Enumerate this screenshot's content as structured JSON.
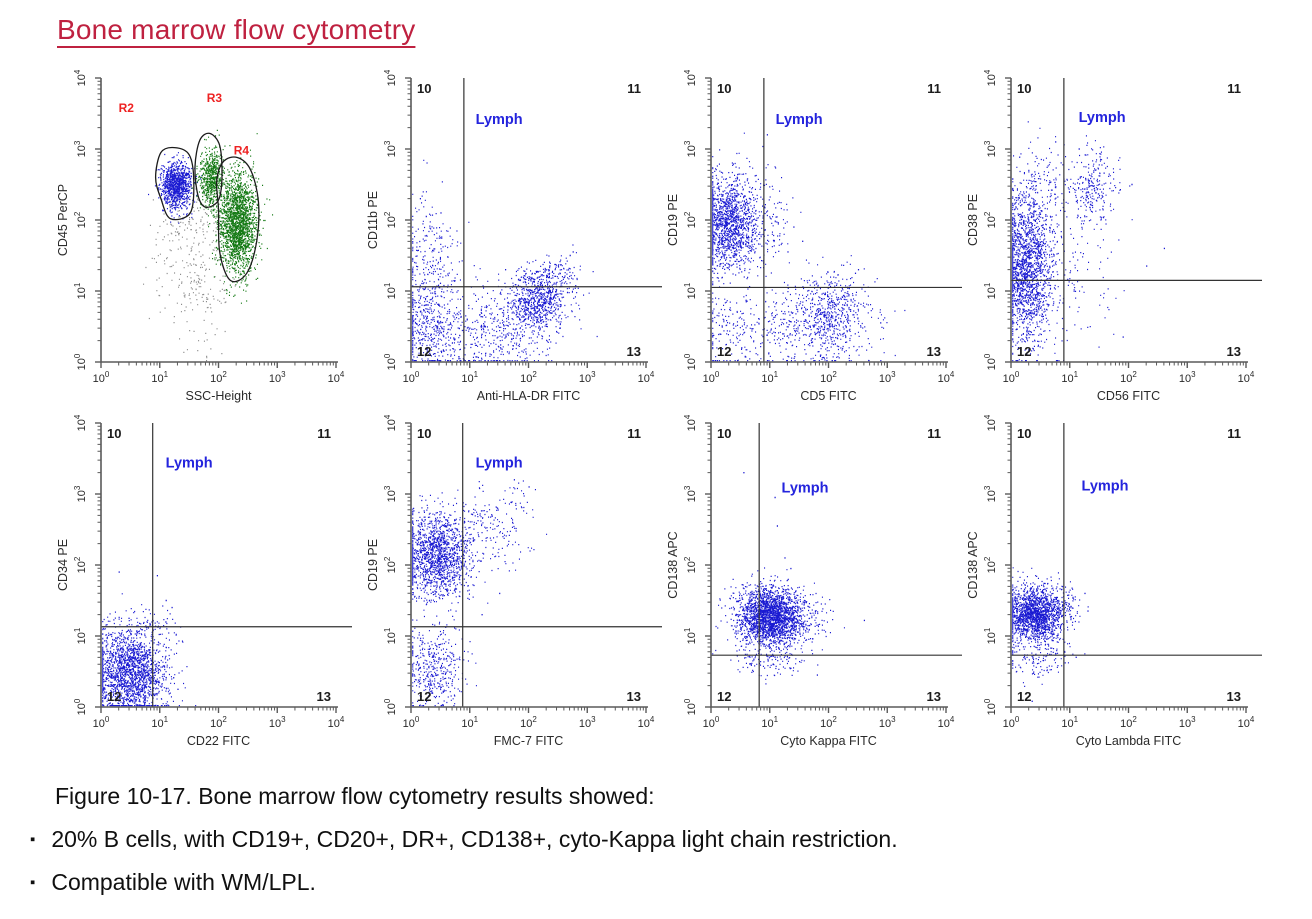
{
  "page": {
    "title": "Bone marrow flow cytometry",
    "caption": "Figure 10-17. Bone marrow flow cytometry results showed:",
    "bullet_glyph": "▪",
    "bullets": [
      "20% B cells, with CD19+, CD20+, DR+, CD138+, cyto-Kappa light chain restriction.",
      "Compatible with WM/LPL."
    ]
  },
  "colors": {
    "title": "#bf2140",
    "body_text": "#101010",
    "dot_blue": "#1a1ad2",
    "dot_green": "#157a15",
    "dot_gray": "#8c8c8c",
    "gate_outline": "#1b1b1b",
    "quadrant_label": "#1c1c1c",
    "lymph_label": "#2424dd",
    "region_label": "#ee2222",
    "axis": "#5a5a5a",
    "tick_text": "#2a2a2a",
    "quadrant_line": "#333333"
  },
  "axes_common": {
    "scale": "log10",
    "decades": [
      0,
      1,
      2,
      3,
      4
    ],
    "tick_base": "10",
    "xlim": [
      0,
      4
    ],
    "ylim": [
      0,
      4
    ],
    "grid": false
  },
  "chart_data": [
    {
      "type": "scatter",
      "name": "cd45-vs-ssc-gating",
      "xlabel": "SSC-Height",
      "ylabel": "CD45 PerCP",
      "regions": [
        {
          "label": "R2",
          "x": 0.3,
          "y": 3.52
        },
        {
          "label": "R3",
          "x": 1.8,
          "y": 3.66
        },
        {
          "label": "R4",
          "x": 2.26,
          "y": 2.92
        }
      ],
      "gates": [
        [
          [
            1.02,
            2.3
          ],
          [
            0.93,
            2.6
          ],
          [
            1.02,
            2.95
          ],
          [
            1.25,
            3.02
          ],
          [
            1.5,
            2.92
          ],
          [
            1.58,
            2.55
          ],
          [
            1.52,
            2.1
          ],
          [
            1.18,
            2.02
          ]
        ],
        [
          [
            1.65,
            2.35
          ],
          [
            1.6,
            2.75
          ],
          [
            1.68,
            3.12
          ],
          [
            1.85,
            3.22
          ],
          [
            2.02,
            3.05
          ],
          [
            2.06,
            2.62
          ],
          [
            2.0,
            2.28
          ],
          [
            1.78,
            2.18
          ]
        ],
        [
          [
            2.0,
            2.15
          ],
          [
            1.97,
            2.55
          ],
          [
            2.08,
            2.82
          ],
          [
            2.32,
            2.88
          ],
          [
            2.55,
            2.7
          ],
          [
            2.68,
            2.25
          ],
          [
            2.65,
            1.7
          ],
          [
            2.48,
            1.25
          ],
          [
            2.2,
            1.15
          ],
          [
            2.02,
            1.55
          ]
        ]
      ],
      "clusters": [
        {
          "color": "gray",
          "cx": 1.45,
          "cy": 1.55,
          "sx": 0.3,
          "sy": 0.42,
          "n": 160,
          "seed": 101
        },
        {
          "color": "gray",
          "cx": 1.75,
          "cy": 0.85,
          "sx": 0.28,
          "sy": 0.35,
          "n": 90,
          "seed": 102
        },
        {
          "color": "gray",
          "cx": 1.6,
          "cy": 2.1,
          "sx": 0.35,
          "sy": 0.25,
          "n": 80,
          "seed": 103
        },
        {
          "color": "blue",
          "cx": 1.27,
          "cy": 2.5,
          "sx": 0.13,
          "sy": 0.16,
          "n": 1000,
          "seed": 104
        },
        {
          "color": "green",
          "cx": 1.87,
          "cy": 2.58,
          "sx": 0.1,
          "sy": 0.22,
          "n": 600,
          "seed": 105
        },
        {
          "color": "green",
          "cx": 2.33,
          "cy": 1.95,
          "sx": 0.16,
          "sy": 0.34,
          "n": 2000,
          "seed": 106
        }
      ],
      "outliers": []
    },
    {
      "type": "scatter",
      "name": "cd11b-vs-hladr",
      "xlabel": "Anti-HLA-DR FITC",
      "ylabel": "CD11b PE",
      "quadrants": {
        "vx": 0.9,
        "hy": 1.06,
        "labels": [
          "10",
          "11",
          "12",
          "13"
        ]
      },
      "lymph": {
        "text": "Lymph",
        "x": 1.1,
        "y": 3.35
      },
      "clusters": [
        {
          "color": "blue",
          "cx": 0.3,
          "cy": 0.55,
          "sx": 0.28,
          "sy": 0.35,
          "n": 420,
          "seed": 201
        },
        {
          "color": "blue",
          "cx": 0.3,
          "cy": 1.45,
          "sx": 0.25,
          "sy": 0.45,
          "n": 230,
          "seed": 202
        },
        {
          "color": "blue",
          "cx": 1.55,
          "cy": 0.55,
          "sx": 0.5,
          "sy": 0.3,
          "n": 350,
          "seed": 203
        },
        {
          "color": "blue",
          "cx": 2.15,
          "cy": 0.85,
          "sx": 0.25,
          "sy": 0.22,
          "n": 650,
          "seed": 204
        },
        {
          "color": "blue",
          "cx": 2.45,
          "cy": 1.2,
          "sx": 0.22,
          "sy": 0.15,
          "n": 130,
          "seed": 205
        },
        {
          "color": "blue",
          "cx": 1.1,
          "cy": 0.25,
          "sx": 0.55,
          "sy": 0.2,
          "n": 150,
          "seed": 206
        }
      ],
      "outliers": [
        [
          0.25,
          2.05
        ],
        [
          0.5,
          2.1
        ],
        [
          0.15,
          2.3
        ],
        [
          2.7,
          1.5
        ],
        [
          2.75,
          1.55
        ],
        [
          1.6,
          1.3
        ]
      ]
    },
    {
      "type": "scatter",
      "name": "cd19-vs-cd5",
      "xlabel": "CD5 FITC",
      "ylabel": "CD19 PE",
      "quadrants": {
        "vx": 0.9,
        "hy": 1.05,
        "labels": [
          "10",
          "11",
          "12",
          "13"
        ]
      },
      "lymph": {
        "text": "Lymph",
        "x": 1.1,
        "y": 3.35
      },
      "clusters": [
        {
          "color": "blue",
          "cx": 0.3,
          "cy": 1.95,
          "sx": 0.28,
          "sy": 0.33,
          "n": 1500,
          "seed": 301
        },
        {
          "color": "blue",
          "cx": 1.05,
          "cy": 2.05,
          "sx": 0.18,
          "sy": 0.35,
          "n": 70,
          "seed": 302
        },
        {
          "color": "blue",
          "cx": 1.75,
          "cy": 0.55,
          "sx": 0.5,
          "sy": 0.28,
          "n": 500,
          "seed": 303
        },
        {
          "color": "blue",
          "cx": 2.1,
          "cy": 0.7,
          "sx": 0.22,
          "sy": 0.3,
          "n": 320,
          "seed": 304
        },
        {
          "color": "blue",
          "cx": 0.35,
          "cy": 0.45,
          "sx": 0.3,
          "sy": 0.3,
          "n": 170,
          "seed": 305
        }
      ],
      "outliers": [
        [
          0.95,
          3.2
        ],
        [
          1.4,
          1.9
        ],
        [
          1.55,
          1.7
        ],
        [
          2.45,
          1.25
        ],
        [
          2.5,
          1.3
        ],
        [
          1.3,
          1.55
        ]
      ]
    },
    {
      "type": "scatter",
      "name": "cd38-vs-cd56",
      "xlabel": "CD56 FITC",
      "ylabel": "CD38 PE",
      "quadrants": {
        "vx": 0.9,
        "hy": 1.15,
        "labels": [
          "10",
          "11",
          "12",
          "13"
        ]
      },
      "lymph": {
        "text": "Lymph",
        "x": 1.15,
        "y": 3.38
      },
      "clusters": [
        {
          "color": "blue",
          "cx": 0.26,
          "cy": 1.3,
          "sx": 0.22,
          "sy": 0.52,
          "n": 1700,
          "seed": 401
        },
        {
          "color": "blue",
          "cx": 0.45,
          "cy": 2.4,
          "sx": 0.3,
          "sy": 0.33,
          "n": 180,
          "seed": 402
        },
        {
          "color": "blue",
          "cx": 1.35,
          "cy": 2.45,
          "sx": 0.22,
          "sy": 0.27,
          "n": 260,
          "seed": 403
        },
        {
          "color": "blue",
          "cx": 1.05,
          "cy": 1.1,
          "sx": 0.4,
          "sy": 0.45,
          "n": 110,
          "seed": 404
        }
      ],
      "outliers": [
        [
          2.05,
          2.5
        ],
        [
          2.3,
          1.35
        ],
        [
          1.9,
          0.35
        ],
        [
          2.6,
          1.6
        ],
        [
          1.15,
          3.0
        ],
        [
          0.75,
          3.1
        ]
      ]
    },
    {
      "type": "scatter",
      "name": "cd34-vs-cd22",
      "xlabel": "CD22 FITC",
      "ylabel": "CD34 PE",
      "quadrants": {
        "vx": 0.88,
        "hy": 1.13,
        "labels": [
          "10",
          "11",
          "12",
          "13"
        ]
      },
      "lymph": {
        "text": "Lymph",
        "x": 1.1,
        "y": 3.37
      },
      "clusters": [
        {
          "color": "blue",
          "cx": 0.5,
          "cy": 0.48,
          "sx": 0.33,
          "sy": 0.3,
          "n": 1900,
          "seed": 501
        },
        {
          "color": "blue",
          "cx": 0.75,
          "cy": 1.15,
          "sx": 0.3,
          "sy": 0.12,
          "n": 70,
          "seed": 502
        }
      ],
      "outliers": [
        [
          0.95,
          1.85
        ],
        [
          1.2,
          1.4
        ],
        [
          1.3,
          0.25
        ],
        [
          0.3,
          1.9
        ],
        [
          1.1,
          1.5
        ]
      ]
    },
    {
      "type": "scatter",
      "name": "cd19-vs-fmc7",
      "xlabel": "FMC-7 FITC",
      "ylabel": "CD19 PE",
      "quadrants": {
        "vx": 0.88,
        "hy": 1.13,
        "labels": [
          "10",
          "11",
          "12",
          "13"
        ]
      },
      "lymph": {
        "text": "Lymph",
        "x": 1.1,
        "y": 3.37
      },
      "clusters": [
        {
          "color": "blue",
          "cx": 0.42,
          "cy": 2.12,
          "sx": 0.28,
          "sy": 0.3,
          "n": 1400,
          "seed": 601
        },
        {
          "color": "blue",
          "cx": 1.2,
          "cy": 2.45,
          "sx": 0.38,
          "sy": 0.3,
          "n": 230,
          "seed": 602
        },
        {
          "color": "blue",
          "cx": 1.85,
          "cy": 2.95,
          "sx": 0.22,
          "sy": 0.15,
          "n": 20,
          "seed": 603
        },
        {
          "color": "blue",
          "cx": 0.38,
          "cy": 0.55,
          "sx": 0.26,
          "sy": 0.3,
          "n": 400,
          "seed": 604
        }
      ],
      "outliers": [
        [
          2.0,
          3.1
        ],
        [
          1.75,
          3.2
        ],
        [
          1.5,
          1.6
        ],
        [
          1.2,
          1.3
        ]
      ]
    },
    {
      "type": "scatter",
      "name": "cd138-vs-cytokappa",
      "xlabel": "Cyto Kappa FITC",
      "ylabel": "CD138 APC",
      "quadrants": {
        "vx": 0.82,
        "hy": 0.73,
        "labels": [
          "10",
          "11",
          "12",
          "13"
        ]
      },
      "lymph": {
        "text": "Lymph",
        "x": 1.2,
        "y": 3.02
      },
      "clusters": [
        {
          "color": "blue",
          "cx": 1.0,
          "cy": 1.28,
          "sx": 0.28,
          "sy": 0.2,
          "n": 2300,
          "seed": 701
        },
        {
          "color": "blue",
          "cx": 1.55,
          "cy": 1.2,
          "sx": 0.28,
          "sy": 0.16,
          "n": 90,
          "seed": 702
        },
        {
          "color": "blue",
          "cx": 1.0,
          "cy": 0.65,
          "sx": 0.32,
          "sy": 0.14,
          "n": 130,
          "seed": 703
        }
      ],
      "outliers": [
        [
          0.55,
          3.3
        ],
        [
          1.08,
          2.95
        ],
        [
          1.12,
          2.55
        ],
        [
          1.25,
          2.1
        ],
        [
          2.6,
          1.22
        ],
        [
          1.8,
          0.45
        ],
        [
          1.35,
          1.95
        ]
      ]
    },
    {
      "type": "scatter",
      "name": "cd138-vs-cytolambda",
      "xlabel": "Cyto Lambda FITC",
      "ylabel": "CD138 APC",
      "quadrants": {
        "vx": 0.9,
        "hy": 0.73,
        "labels": [
          "10",
          "11",
          "12",
          "13"
        ]
      },
      "lymph": {
        "text": "Lymph",
        "x": 1.2,
        "y": 3.05
      },
      "clusters": [
        {
          "color": "blue",
          "cx": 0.4,
          "cy": 1.3,
          "sx": 0.25,
          "sy": 0.2,
          "n": 1700,
          "seed": 801
        },
        {
          "color": "blue",
          "cx": 0.9,
          "cy": 1.4,
          "sx": 0.15,
          "sy": 0.15,
          "n": 70,
          "seed": 802
        },
        {
          "color": "blue",
          "cx": 0.45,
          "cy": 0.62,
          "sx": 0.28,
          "sy": 0.16,
          "n": 110,
          "seed": 803
        }
      ],
      "outliers": [
        [
          1.25,
          1.6
        ],
        [
          0.35,
          0.08
        ],
        [
          1.1,
          0.7
        ],
        [
          1.3,
          1.35
        ]
      ]
    }
  ]
}
